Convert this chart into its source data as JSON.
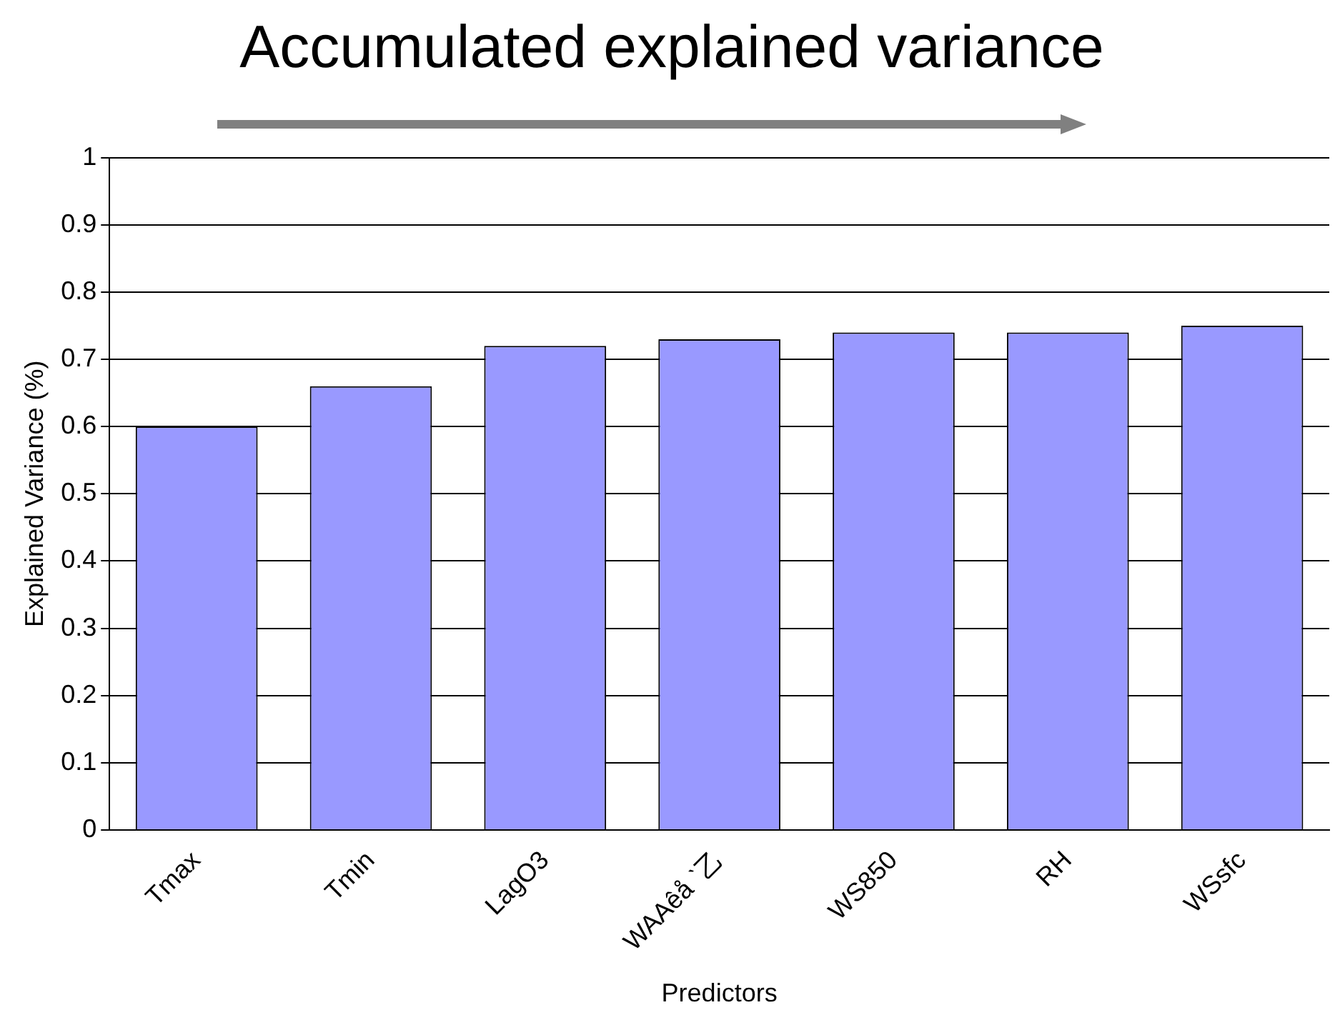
{
  "chart_data": {
    "type": "bar",
    "title": "Accumulated explained variance",
    "xlabel": "Predictors",
    "ylabel": "Explained Variance (%)",
    "categories": [
      "Tmax",
      "Tmin",
      "LagO3",
      "WAAêå ˋ乙",
      "WS850",
      "RH",
      "WSsfc"
    ],
    "values": [
      0.6,
      0.66,
      0.72,
      0.73,
      0.74,
      0.74,
      0.75
    ],
    "color": "#9999ff",
    "ylim": [
      0,
      1
    ],
    "yticks": [
      0,
      0.1,
      0.2,
      0.3,
      0.4,
      0.5,
      0.6,
      0.7,
      0.8,
      0.9,
      1
    ],
    "grid": "y"
  }
}
